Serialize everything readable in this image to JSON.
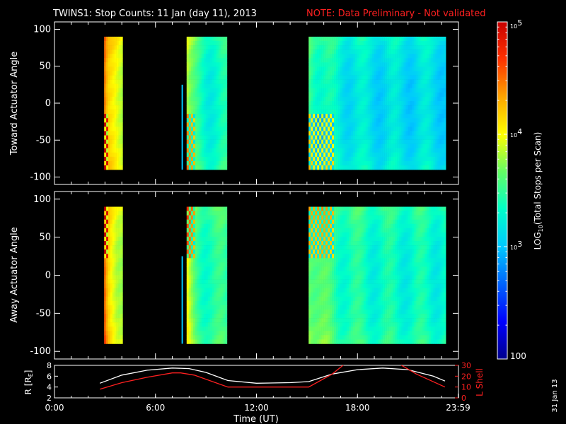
{
  "title": {
    "main": "TWINS1: Stop Counts: 11 Jan (day  11), 2013",
    "note": "NOTE: Data Preliminary - Not validated",
    "note_color": "#ff2020"
  },
  "side_stamp": "31 Jan 13",
  "colors": {
    "background": "#000000",
    "axes": "#ffffff",
    "annotation_red": "#ff2020",
    "colormap": [
      "#00008c",
      "#0000ff",
      "#0064ff",
      "#00c8ff",
      "#00ffc8",
      "#64ff64",
      "#ffff00",
      "#ffa500",
      "#ff3200",
      "#c80000"
    ]
  },
  "chart_data": [
    {
      "type": "heatmap",
      "panel": "top",
      "ylabel": "Toward Actuator Angle",
      "ylim": [
        -110,
        110
      ],
      "y_ticks": [
        "100",
        "50",
        "0",
        "-50",
        "-100"
      ],
      "x_range_hours": [
        0,
        24
      ],
      "blocks": [
        {
          "x": [
            2.95,
            4.05
          ],
          "y": [
            -90,
            90
          ],
          "level": 3.9
        },
        {
          "x": [
            7.55,
            7.6
          ],
          "y": [
            -90,
            25
          ],
          "level": 3.0
        },
        {
          "x": [
            7.85,
            10.25
          ],
          "y": [
            -90,
            90
          ],
          "level": 3.3
        },
        {
          "x": [
            15.1,
            23.25
          ],
          "y": [
            -90,
            90
          ],
          "level": 3.1
        }
      ]
    },
    {
      "type": "heatmap",
      "panel": "middle",
      "ylabel": "Away Actuator Angle",
      "ylim": [
        -110,
        110
      ],
      "y_ticks": [
        "100",
        "50",
        "0",
        "-50",
        "-100"
      ],
      "x_range_hours": [
        0,
        24
      ],
      "blocks": [
        {
          "x": [
            2.95,
            4.05
          ],
          "y": [
            -90,
            90
          ],
          "level": 3.9
        },
        {
          "x": [
            7.55,
            7.6
          ],
          "y": [
            -90,
            25
          ],
          "level": 3.0
        },
        {
          "x": [
            7.85,
            10.25
          ],
          "y": [
            -90,
            90
          ],
          "level": 3.4
        },
        {
          "x": [
            15.1,
            23.25
          ],
          "y": [
            -90,
            90
          ],
          "level": 3.3
        }
      ]
    },
    {
      "type": "line",
      "panel": "orbit",
      "xlabel": "Time (UT)",
      "x_ticks": [
        "0:00",
        "6:00",
        "12:00",
        "18:00",
        "23:59"
      ],
      "y_left_label": "R [RE]",
      "y_left_ticks": [
        "8",
        "6",
        "4",
        "2"
      ],
      "y_left_range": [
        2,
        8
      ],
      "y_right_label": "L Shell",
      "y_right_ticks": [
        "30",
        "20",
        "10",
        "0"
      ],
      "y_right_range": [
        0,
        30
      ],
      "series": [
        {
          "name": "R [RE]",
          "color": "#ffffff",
          "axis": "left",
          "x": [
            2.7,
            4.0,
            5.5,
            7.0,
            8.0,
            9.0,
            10.3,
            12.0,
            14.0,
            15.1,
            16.5,
            18.0,
            19.5,
            21.0,
            22.5,
            23.2
          ],
          "y": [
            4.7,
            6.2,
            7.1,
            7.5,
            7.4,
            6.7,
            5.2,
            4.7,
            4.8,
            5.0,
            6.4,
            7.2,
            7.5,
            7.2,
            6.0,
            5.1
          ]
        },
        {
          "name": "L Shell",
          "color": "#ff2020",
          "axis": "right",
          "x": [
            2.7,
            4.0,
            5.5,
            7.0,
            7.5,
            8.3,
            10.3,
            12.0,
            14.0,
            15.1,
            16.5,
            17.3,
            20.4,
            21.5,
            23.2
          ],
          "y": [
            8,
            14,
            19,
            23,
            23,
            21,
            10,
            10,
            10,
            10,
            22,
            32,
            32,
            22,
            10
          ]
        }
      ]
    }
  ],
  "colorbar": {
    "label": "LOG10(Total Stops per Scan)",
    "tick_labels": [
      "10^5",
      "10^4",
      "10^3",
      "100"
    ],
    "range_log": [
      2,
      5
    ]
  }
}
